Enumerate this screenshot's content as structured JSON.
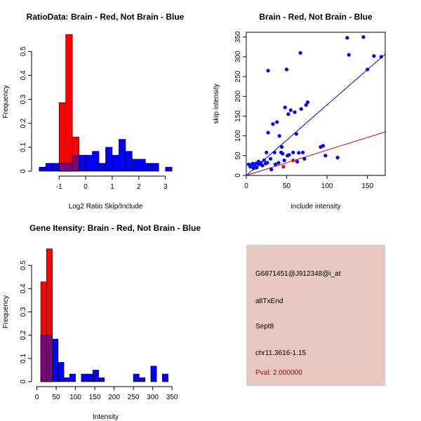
{
  "chart_data": [
    {
      "id": "ratio-hist",
      "type": "bar",
      "title": "RatioData: Brain - Red, Not Brain - Blue",
      "xlabel": "Log2 Ratio Skip/Include",
      "ylabel": "Frequency",
      "xlim": [
        -1.85,
        3.35
      ],
      "ylim": [
        0,
        0.58
      ],
      "xticks": [
        -1,
        0,
        1,
        2,
        3
      ],
      "yticks": [
        0,
        0.1,
        0.2,
        0.3,
        0.4,
        0.5
      ],
      "series": [
        {
          "name": "Not Brain",
          "color": "#0000ff",
          "bins": [
            {
              "x0": -1.75,
              "x1": -1.5,
              "value": 0.017
            },
            {
              "x0": -1.5,
              "x1": -1.25,
              "value": 0.033
            },
            {
              "x0": -1.25,
              "x1": -1.0,
              "value": 0.033
            },
            {
              "x0": -1.0,
              "x1": -0.75,
              "value": 0.033
            },
            {
              "x0": -0.75,
              "x1": -0.5,
              "value": 0.033
            },
            {
              "x0": -0.5,
              "x1": -0.25,
              "value": 0.067
            },
            {
              "x0": -0.25,
              "x1": 0.0,
              "value": 0.067
            },
            {
              "x0": 0.0,
              "x1": 0.25,
              "value": 0.067
            },
            {
              "x0": 0.25,
              "x1": 0.5,
              "value": 0.083
            },
            {
              "x0": 0.5,
              "x1": 0.75,
              "value": 0.033
            },
            {
              "x0": 0.75,
              "x1": 1.0,
              "value": 0.1
            },
            {
              "x0": 1.0,
              "x1": 1.25,
              "value": 0.067
            },
            {
              "x0": 1.25,
              "x1": 1.5,
              "value": 0.133
            },
            {
              "x0": 1.5,
              "x1": 1.75,
              "value": 0.083
            },
            {
              "x0": 1.75,
              "x1": 2.0,
              "value": 0.05
            },
            {
              "x0": 2.0,
              "x1": 2.25,
              "value": 0.05
            },
            {
              "x0": 2.25,
              "x1": 2.5,
              "value": 0.033
            },
            {
              "x0": 2.5,
              "x1": 2.75,
              "value": 0.033
            },
            {
              "x0": 3.0,
              "x1": 3.25,
              "value": 0.017
            }
          ]
        },
        {
          "name": "Brain",
          "color": "#ff0000",
          "bins": [
            {
              "x0": -1.0,
              "x1": -0.75,
              "value": 0.286
            },
            {
              "x0": -0.75,
              "x1": -0.5,
              "value": 0.571
            },
            {
              "x0": -0.5,
              "x1": -0.25,
              "value": 0.143
            }
          ]
        }
      ]
    },
    {
      "id": "skip-scatter",
      "type": "scatter",
      "title": "Brain - Red, Not Brain - Blue",
      "xlabel": "include intensity",
      "ylabel": "skip intensity",
      "xlim": [
        0,
        172
      ],
      "ylim": [
        0,
        362
      ],
      "xticks": [
        0,
        50,
        100,
        150
      ],
      "yticks": [
        0,
        50,
        100,
        150,
        200,
        250,
        300,
        350
      ],
      "series": [
        {
          "name": "Not Brain",
          "color": "#0000ff",
          "points": [
            [
              3,
              28
            ],
            [
              5,
              22
            ],
            [
              6,
              25
            ],
            [
              8,
              30
            ],
            [
              9,
              18
            ],
            [
              10,
              26
            ],
            [
              12,
              30
            ],
            [
              13,
              20
            ],
            [
              15,
              35
            ],
            [
              16,
              28
            ],
            [
              18,
              32
            ],
            [
              20,
              25
            ],
            [
              22,
              38
            ],
            [
              24,
              30
            ],
            [
              25,
              58
            ],
            [
              26,
              32
            ],
            [
              27,
              108
            ],
            [
              27,
              265
            ],
            [
              30,
              42
            ],
            [
              31,
              15
            ],
            [
              33,
              130
            ],
            [
              35,
              58
            ],
            [
              36,
              28
            ],
            [
              38,
              135
            ],
            [
              40,
              32
            ],
            [
              41,
              100
            ],
            [
              43,
              58
            ],
            [
              44,
              72
            ],
            [
              45,
              55
            ],
            [
              47,
              38
            ],
            [
              48,
              172
            ],
            [
              50,
              268
            ],
            [
              51,
              50
            ],
            [
              52,
              155
            ],
            [
              53,
              52
            ],
            [
              55,
              165
            ],
            [
              58,
              58
            ],
            [
              60,
              160
            ],
            [
              62,
              105
            ],
            [
              63,
              35
            ],
            [
              65,
              57
            ],
            [
              67,
              310
            ],
            [
              68,
              168
            ],
            [
              70,
              58
            ],
            [
              72,
              42
            ],
            [
              74,
              178
            ],
            [
              76,
              185
            ],
            [
              92,
              72
            ],
            [
              95,
              75
            ],
            [
              98,
              50
            ],
            [
              113,
              45
            ],
            [
              125,
              348
            ],
            [
              127,
              305
            ],
            [
              145,
              350
            ],
            [
              150,
              268
            ],
            [
              158,
              302
            ],
            [
              167,
              300
            ]
          ]
        },
        {
          "name": "Brain",
          "color": "#ff0000",
          "points": [
            [
              46,
              22
            ],
            [
              58,
              38
            ]
          ]
        }
      ],
      "lines": [
        {
          "name": "Not Brain fit",
          "color": "#0000ff",
          "x": [
            0,
            172
          ],
          "y": [
            0,
            307
          ]
        },
        {
          "name": "Brain fit",
          "color": "#cc0000",
          "x": [
            0,
            172
          ],
          "y": [
            0,
            110
          ]
        }
      ]
    },
    {
      "id": "intensity-hist",
      "type": "bar",
      "title": "Gene Itensity: Brain - Red, Not Brain - Blue",
      "xlabel": "Intensity",
      "ylabel": "Frequency",
      "xlim": [
        -1,
        357
      ],
      "ylim": [
        0,
        0.6
      ],
      "xticks": [
        0,
        50,
        100,
        150,
        200,
        250,
        300,
        350
      ],
      "yticks": [
        0,
        0.1,
        0.2,
        0.3,
        0.4,
        0.5
      ],
      "series": [
        {
          "name": "Not Brain",
          "color": "#0000ff",
          "bins": [
            {
              "x0": 10,
              "x1": 25,
              "value": 0.2
            },
            {
              "x0": 25,
              "x1": 40,
              "value": 0.2
            },
            {
              "x0": 40,
              "x1": 55,
              "value": 0.183
            },
            {
              "x0": 55,
              "x1": 70,
              "value": 0.083
            },
            {
              "x0": 70,
              "x1": 85,
              "value": 0.017
            },
            {
              "x0": 85,
              "x1": 100,
              "value": 0.033
            },
            {
              "x0": 115,
              "x1": 130,
              "value": 0.033
            },
            {
              "x0": 130,
              "x1": 145,
              "value": 0.033
            },
            {
              "x0": 145,
              "x1": 160,
              "value": 0.05
            },
            {
              "x0": 160,
              "x1": 175,
              "value": 0.017
            },
            {
              "x0": 250,
              "x1": 265,
              "value": 0.033
            },
            {
              "x0": 265,
              "x1": 280,
              "value": 0.017
            },
            {
              "x0": 295,
              "x1": 310,
              "value": 0.067
            },
            {
              "x0": 325,
              "x1": 340,
              "value": 0.033
            }
          ]
        },
        {
          "name": "Brain",
          "color": "#ff0000",
          "bins": [
            {
              "x0": 10,
              "x1": 25,
              "value": 0.429
            },
            {
              "x0": 25,
              "x1": 40,
              "value": 0.571
            }
          ]
        }
      ]
    }
  ],
  "info": {
    "probe": "G6871451@J912348@i_at",
    "event_type": "altTxEnd",
    "gene": "Sept8",
    "location": "chr11.3616-1.15",
    "pval": "Pval: 2.000000",
    "panel_color": "#e6c8c0",
    "pval_color": "#b30000"
  }
}
